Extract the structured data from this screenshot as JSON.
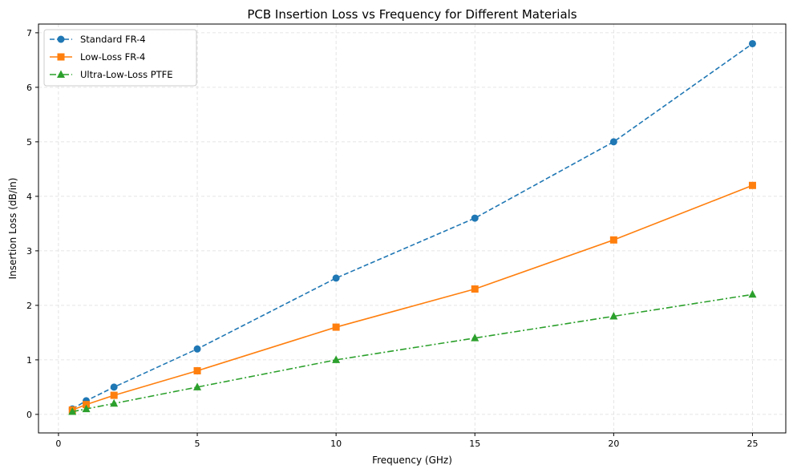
{
  "chart_data": {
    "type": "line",
    "title": "PCB Insertion Loss vs Frequency for Different Materials",
    "xlabel": "Frequency (GHz)",
    "ylabel": "Insertion Loss (dB/in)",
    "x": [
      0.5,
      1,
      2,
      5,
      10,
      15,
      20,
      25
    ],
    "xlim": [
      -0.72,
      26.2
    ],
    "ylim": [
      -0.34,
      7.16
    ],
    "xticks": [
      0,
      5,
      10,
      15,
      20,
      25
    ],
    "yticks": [
      0,
      1,
      2,
      3,
      4,
      5,
      6,
      7
    ],
    "grid": true,
    "legend": "top-left",
    "series": [
      {
        "name": "Standard FR-4",
        "values": [
          0.1,
          0.25,
          0.5,
          1.2,
          2.5,
          3.6,
          5.0,
          6.8
        ],
        "color": "#1f77b4",
        "marker": "circle",
        "dash": "dashed"
      },
      {
        "name": "Low-Loss FR-4",
        "values": [
          0.08,
          0.18,
          0.35,
          0.8,
          1.6,
          2.3,
          3.2,
          4.2
        ],
        "color": "#ff7f0e",
        "marker": "square",
        "dash": "solid"
      },
      {
        "name": "Ultra-Low-Loss PTFE",
        "values": [
          0.05,
          0.1,
          0.2,
          0.5,
          1.0,
          1.4,
          1.8,
          2.2
        ],
        "color": "#2ca02c",
        "marker": "triangle",
        "dash": "dashdot"
      }
    ]
  }
}
